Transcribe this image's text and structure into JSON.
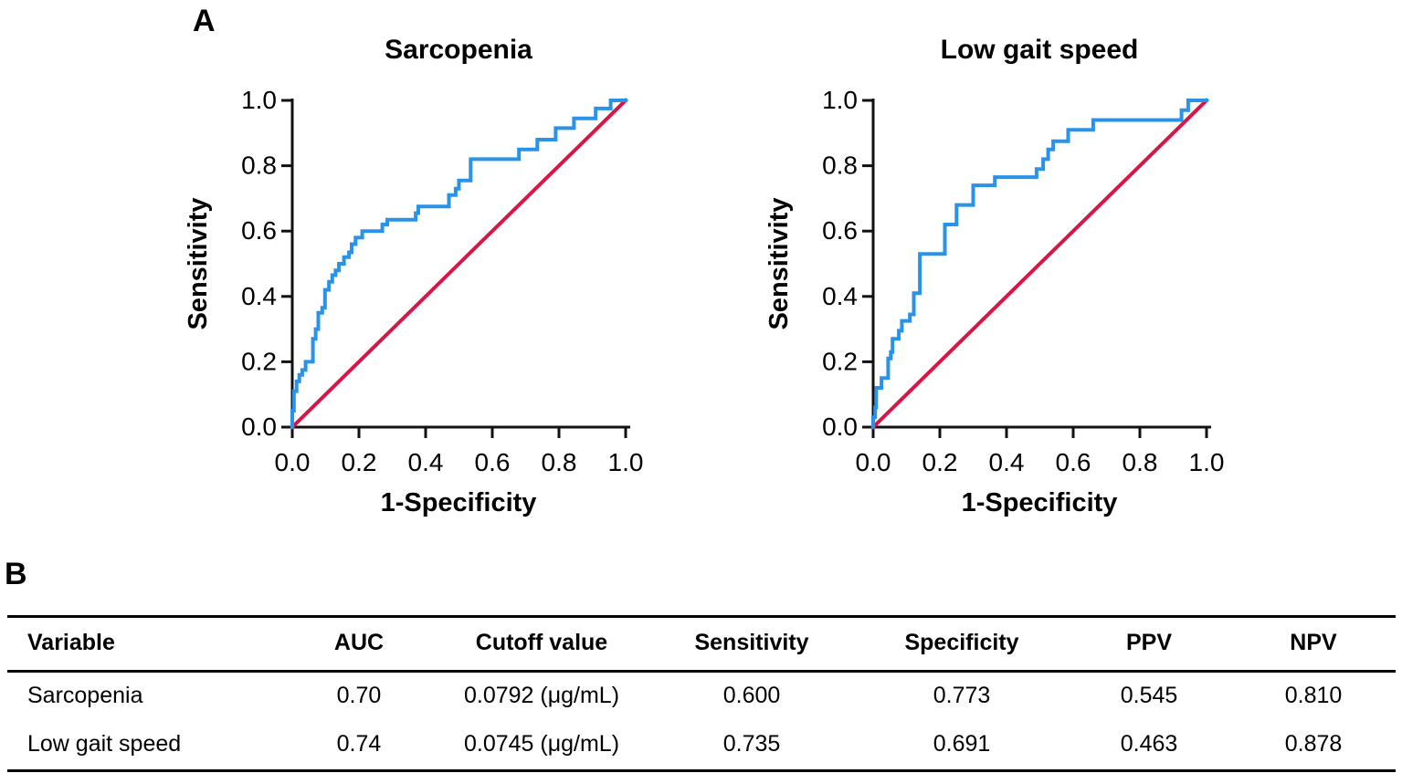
{
  "panel_a": {
    "label": "A"
  },
  "panel_b": {
    "label": "B"
  },
  "colors": {
    "roc_curve": "#2893e8",
    "reference_line": "#d91544",
    "axis": "#111111"
  },
  "chart_data": [
    {
      "type": "line",
      "title": "Sarcopenia",
      "xlabel": "1-Specificity",
      "ylabel": "Sensitivity",
      "xlim": [
        0,
        1
      ],
      "ylim": [
        0,
        1
      ],
      "grid": false,
      "legend": "none",
      "xticks": [
        "0.0",
        "0.2",
        "0.4",
        "0.6",
        "0.8",
        "1.0"
      ],
      "yticks": [
        "0.0",
        "0.2",
        "0.4",
        "0.6",
        "0.8",
        "1.0"
      ],
      "axis_color": "#111111",
      "series": [
        {
          "name": "reference-line",
          "color": "#d91544",
          "points": [
            [
              0,
              0
            ],
            [
              1,
              1
            ]
          ]
        },
        {
          "name": "roc-curve",
          "color": "#2893e8",
          "points": [
            [
              0,
              0
            ],
            [
              0,
              0.05
            ],
            [
              0.005,
              0.05
            ],
            [
              0.005,
              0.11
            ],
            [
              0.013,
              0.11
            ],
            [
              0.013,
              0.14
            ],
            [
              0.021,
              0.14
            ],
            [
              0.021,
              0.16
            ],
            [
              0.03,
              0.16
            ],
            [
              0.03,
              0.175
            ],
            [
              0.04,
              0.175
            ],
            [
              0.04,
              0.2
            ],
            [
              0.062,
              0.2
            ],
            [
              0.062,
              0.27
            ],
            [
              0.07,
              0.27
            ],
            [
              0.07,
              0.3
            ],
            [
              0.078,
              0.3
            ],
            [
              0.078,
              0.35
            ],
            [
              0.09,
              0.35
            ],
            [
              0.09,
              0.365
            ],
            [
              0.098,
              0.365
            ],
            [
              0.098,
              0.42
            ],
            [
              0.11,
              0.42
            ],
            [
              0.11,
              0.445
            ],
            [
              0.12,
              0.445
            ],
            [
              0.12,
              0.465
            ],
            [
              0.13,
              0.465
            ],
            [
              0.13,
              0.48
            ],
            [
              0.14,
              0.48
            ],
            [
              0.14,
              0.5
            ],
            [
              0.155,
              0.5
            ],
            [
              0.155,
              0.52
            ],
            [
              0.17,
              0.52
            ],
            [
              0.17,
              0.535
            ],
            [
              0.178,
              0.535
            ],
            [
              0.178,
              0.56
            ],
            [
              0.19,
              0.56
            ],
            [
              0.19,
              0.58
            ],
            [
              0.21,
              0.58
            ],
            [
              0.21,
              0.6
            ],
            [
              0.27,
              0.6
            ],
            [
              0.27,
              0.62
            ],
            [
              0.285,
              0.62
            ],
            [
              0.285,
              0.635
            ],
            [
              0.37,
              0.635
            ],
            [
              0.37,
              0.655
            ],
            [
              0.378,
              0.655
            ],
            [
              0.378,
              0.675
            ],
            [
              0.47,
              0.675
            ],
            [
              0.47,
              0.71
            ],
            [
              0.49,
              0.71
            ],
            [
              0.49,
              0.73
            ],
            [
              0.5,
              0.73
            ],
            [
              0.5,
              0.755
            ],
            [
              0.535,
              0.755
            ],
            [
              0.535,
              0.82
            ],
            [
              0.68,
              0.82
            ],
            [
              0.68,
              0.85
            ],
            [
              0.735,
              0.85
            ],
            [
              0.735,
              0.88
            ],
            [
              0.79,
              0.88
            ],
            [
              0.79,
              0.915
            ],
            [
              0.845,
              0.915
            ],
            [
              0.845,
              0.945
            ],
            [
              0.91,
              0.945
            ],
            [
              0.91,
              0.975
            ],
            [
              0.955,
              0.975
            ],
            [
              0.955,
              1
            ],
            [
              1,
              1
            ]
          ]
        }
      ]
    },
    {
      "type": "line",
      "title": "Low gait speed",
      "xlabel": "1-Specificity",
      "ylabel": "Sensitivity",
      "xlim": [
        0,
        1
      ],
      "ylim": [
        0,
        1
      ],
      "grid": false,
      "legend": "none",
      "xticks": [
        "0.0",
        "0.2",
        "0.4",
        "0.6",
        "0.8",
        "1.0"
      ],
      "yticks": [
        "0.0",
        "0.2",
        "0.4",
        "0.6",
        "0.8",
        "1.0"
      ],
      "axis_color": "#111111",
      "series": [
        {
          "name": "reference-line",
          "color": "#d91544",
          "points": [
            [
              0,
              0
            ],
            [
              1,
              1
            ]
          ]
        },
        {
          "name": "roc-curve",
          "color": "#2893e8",
          "points": [
            [
              0,
              0
            ],
            [
              0,
              0.03
            ],
            [
              0.006,
              0.03
            ],
            [
              0.006,
              0.06
            ],
            [
              0.009,
              0.06
            ],
            [
              0.009,
              0.12
            ],
            [
              0.025,
              0.12
            ],
            [
              0.025,
              0.15
            ],
            [
              0.045,
              0.15
            ],
            [
              0.045,
              0.21
            ],
            [
              0.053,
              0.21
            ],
            [
              0.053,
              0.23
            ],
            [
              0.058,
              0.23
            ],
            [
              0.058,
              0.27
            ],
            [
              0.077,
              0.27
            ],
            [
              0.077,
              0.295
            ],
            [
              0.086,
              0.295
            ],
            [
              0.086,
              0.325
            ],
            [
              0.11,
              0.325
            ],
            [
              0.11,
              0.345
            ],
            [
              0.122,
              0.345
            ],
            [
              0.122,
              0.41
            ],
            [
              0.14,
              0.41
            ],
            [
              0.14,
              0.53
            ],
            [
              0.215,
              0.53
            ],
            [
              0.215,
              0.62
            ],
            [
              0.25,
              0.62
            ],
            [
              0.25,
              0.68
            ],
            [
              0.3,
              0.68
            ],
            [
              0.3,
              0.74
            ],
            [
              0.365,
              0.74
            ],
            [
              0.365,
              0.765
            ],
            [
              0.49,
              0.765
            ],
            [
              0.49,
              0.79
            ],
            [
              0.51,
              0.79
            ],
            [
              0.51,
              0.82
            ],
            [
              0.525,
              0.82
            ],
            [
              0.525,
              0.85
            ],
            [
              0.54,
              0.85
            ],
            [
              0.54,
              0.875
            ],
            [
              0.585,
              0.875
            ],
            [
              0.585,
              0.91
            ],
            [
              0.66,
              0.91
            ],
            [
              0.66,
              0.94
            ],
            [
              0.925,
              0.94
            ],
            [
              0.925,
              0.97
            ],
            [
              0.945,
              0.97
            ],
            [
              0.945,
              1
            ],
            [
              1,
              1
            ]
          ]
        }
      ]
    }
  ],
  "table": {
    "headers": [
      "Variable",
      "AUC",
      "Cutoff value",
      "Sensitivity",
      "Specificity",
      "PPV",
      "NPV"
    ],
    "rows": [
      [
        "Sarcopenia",
        "0.70",
        "0.0792 (μg/mL)",
        "0.600",
        "0.773",
        "0.545",
        "0.810"
      ],
      [
        "Low gait speed",
        "0.74",
        "0.0745 (μg/mL)",
        "0.735",
        "0.691",
        "0.463",
        "0.878"
      ]
    ]
  }
}
